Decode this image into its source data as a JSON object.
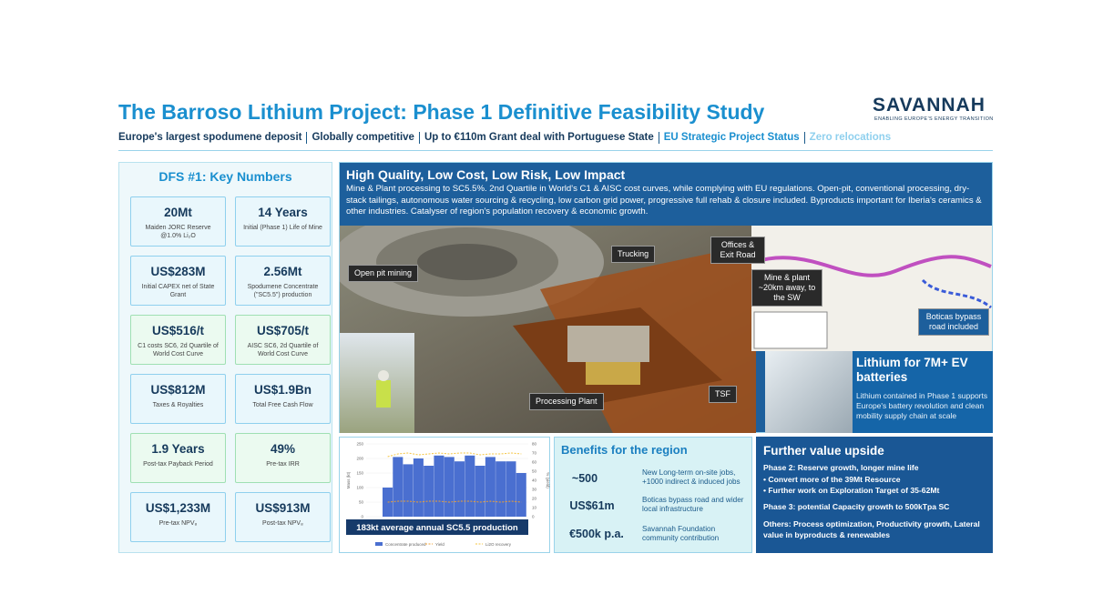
{
  "header": {
    "title": "The Barroso Lithium Project: Phase 1 Definitive Feasibility Study",
    "logo": "SAVANNAH",
    "logo_tagline": "ENABLING EUROPE'S ENERGY TRANSITION",
    "highlights": [
      "Europe's largest spodumene deposit",
      "Globally competitive",
      "Up to €110m Grant deal with Portuguese State",
      "EU Strategic Project Status",
      "Zero relocations"
    ]
  },
  "key_numbers": {
    "title": "DFS #1: Key Numbers",
    "cards": [
      {
        "value": "20Mt",
        "label": "Maiden JORC Reserve @1.0% Li₂O"
      },
      {
        "value": "14 Years",
        "label": "Initial (Phase 1) Life of Mine"
      },
      {
        "value": "US$283M",
        "label": "Initial CAPEX net of State Grant"
      },
      {
        "value": "2.56Mt",
        "label": "Spodumene Concentrate (\"SC5.5\") production"
      },
      {
        "value": "US$516/t",
        "label": "C1 costs SC6, 2d Quartile of World Cost Curve"
      },
      {
        "value": "US$705/t",
        "label": "AISC SC6, 2d Quartile of World Cost Curve"
      },
      {
        "value": "US$812M",
        "label": "Taxes & Royalties"
      },
      {
        "value": "US$1.9Bn",
        "label": "Total Free Cash Flow"
      },
      {
        "value": "1.9 Years",
        "label": "Post-tax Payback Period"
      },
      {
        "value": "49%",
        "label": "Pre-tax IRR"
      },
      {
        "value": "US$1,233M",
        "label": "Pre-tax NPV₈"
      },
      {
        "value": "US$913M",
        "label": "Post-tax NPV₈"
      }
    ]
  },
  "overview": {
    "title": "High Quality, Low Cost, Low Risk, Low Impact",
    "text": "Mine & Plant processing to SC5.5%. 2nd Quartile in World's C1 & AISC cost curves, while complying with EU regulations. Open-pit, conventional processing, dry-stack tailings, autonomous water sourcing & recycling, low carbon grid power, progressive full rehab & closure included. Byproducts important for Iberia's ceramics & other industries. Catalyser of region's population recovery & economic growth.",
    "image_labels": [
      "Open pit mining",
      "Trucking",
      "Offices & Exit Road",
      "Mine & plant ~20km away, to the SW",
      "Processing Plant",
      "TSF",
      "Boticas bypass road included"
    ]
  },
  "lithium": {
    "title": "Lithium for 7M+ EV batteries",
    "text": "Lithium contained in Phase 1 supports Europe's battery revolution and clean mobility supply chain at scale"
  },
  "chart_data": {
    "type": "bar",
    "caption": "183kt average annual SC5.5 production",
    "ylabel": "Mass (kt)",
    "y2label": "% (yield)",
    "categories": [
      null,
      null,
      null,
      null,
      null,
      null,
      null,
      null,
      null,
      null,
      null,
      null,
      null,
      null
    ],
    "ylim": [
      0,
      250
    ],
    "yticks": [
      0,
      50,
      100,
      150,
      200,
      250
    ],
    "y2lim": [
      0,
      80
    ],
    "y2ticks": [
      0,
      10,
      20,
      30,
      40,
      50,
      60,
      70,
      80
    ],
    "series": [
      {
        "name": "Concentrate produced",
        "color": "#4a6fd0",
        "values": [
          100,
          205,
          180,
          200,
          175,
          210,
          205,
          190,
          210,
          175,
          205,
          190,
          190,
          150
        ]
      },
      {
        "name": "Yield",
        "color": "#f0a030",
        "axis": "y2",
        "values": [
          16,
          17,
          17,
          16,
          17,
          17,
          16,
          17,
          17,
          16,
          17,
          16,
          17,
          16
        ]
      },
      {
        "name": "Li2O recovery",
        "color": "#f5c542",
        "axis": "y2",
        "values": [
          66,
          69,
          70,
          68,
          69,
          70,
          69,
          70,
          70,
          68,
          69,
          69,
          70,
          69
        ]
      }
    ]
  },
  "benefits": {
    "title": "Benefits for the region",
    "rows": [
      {
        "value": "~500",
        "text": "New Long-term on-site jobs, +1000 indirect & induced jobs"
      },
      {
        "value": "US$61m",
        "text": "Boticas bypass road and wider local infrastructure"
      },
      {
        "value": "€500k p.a.",
        "text": "Savannah Foundation community contribution"
      }
    ]
  },
  "upside": {
    "title": "Further value upside",
    "phase2": "Phase 2: Reserve growth, longer mine life",
    "bullets": [
      "Convert more of the 39Mt Resource",
      "Further work on Exploration Target of 35-62Mt"
    ],
    "phase3": "Phase 3: potential Capacity growth to 500kTpa SC",
    "others": "Others: Process optimization, Productivity growth, Lateral value in byproducts & renewables"
  }
}
